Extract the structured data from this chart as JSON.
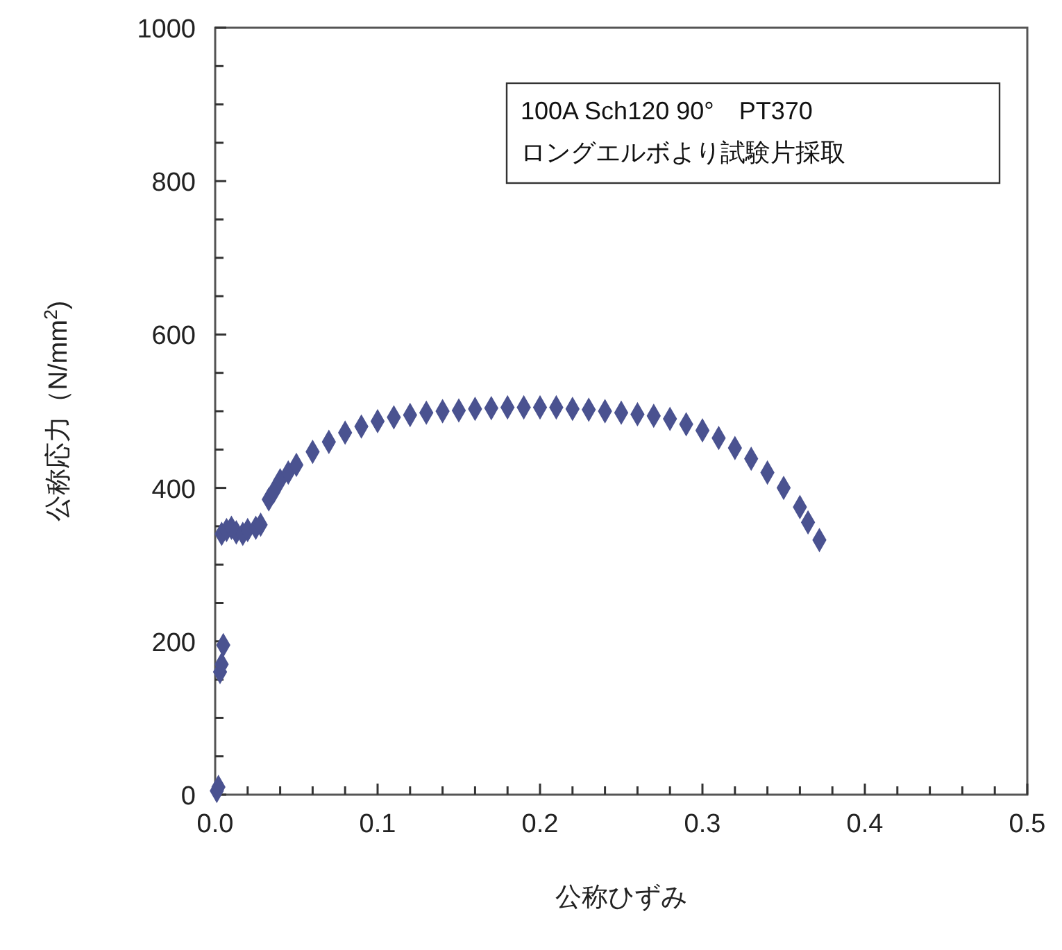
{
  "chart_data": {
    "type": "scatter",
    "xlabel": "公称ひずみ",
    "ylabel": "公称応力（N/mm$^{2}$)",
    "annotations": [
      "100A Sch120 90°　PT370",
      "ロングエルボより試験片採取"
    ],
    "marker": "diamond",
    "grid": false,
    "xlim": [
      0,
      0.5
    ],
    "ylim": [
      0,
      1000
    ],
    "xticks": [
      {
        "value": 0,
        "label": "0.0"
      },
      {
        "value": 0.02,
        "label": null
      },
      {
        "value": 0.04,
        "label": null
      },
      {
        "value": 0.06,
        "label": null
      },
      {
        "value": 0.08,
        "label": null
      },
      {
        "value": 0.1,
        "label": "0.1"
      },
      {
        "value": 0.12,
        "label": null
      },
      {
        "value": 0.14,
        "label": null
      },
      {
        "value": 0.16,
        "label": null
      },
      {
        "value": 0.18,
        "label": null
      },
      {
        "value": 0.2,
        "label": "0.2"
      },
      {
        "value": 0.22,
        "label": null
      },
      {
        "value": 0.24,
        "label": null
      },
      {
        "value": 0.26,
        "label": null
      },
      {
        "value": 0.28,
        "label": null
      },
      {
        "value": 0.3,
        "label": "0.3"
      },
      {
        "value": 0.32,
        "label": null
      },
      {
        "value": 0.34,
        "label": null
      },
      {
        "value": 0.36,
        "label": null
      },
      {
        "value": 0.38,
        "label": null
      },
      {
        "value": 0.4,
        "label": "0.4"
      },
      {
        "value": 0.42,
        "label": null
      },
      {
        "value": 0.44,
        "label": null
      },
      {
        "value": 0.46,
        "label": null
      },
      {
        "value": 0.48,
        "label": null
      },
      {
        "value": 0.5,
        "label": "0.5"
      }
    ],
    "yticks": [
      0,
      {
        "value": 50,
        "label": null
      },
      {
        "value": 100,
        "label": null
      },
      {
        "value": 150,
        "label": null
      },
      200,
      {
        "value": 250,
        "label": null
      },
      {
        "value": 300,
        "label": null
      },
      {
        "value": 350,
        "label": null
      },
      400,
      {
        "value": 450,
        "label": null
      },
      {
        "value": 500,
        "label": null
      },
      {
        "value": 550,
        "label": null
      },
      600,
      {
        "value": 650,
        "label": null
      },
      {
        "value": 700,
        "label": null
      },
      {
        "value": 750,
        "label": null
      },
      800,
      {
        "value": 850,
        "label": null
      },
      {
        "value": 900,
        "label": null
      },
      {
        "value": 950,
        "label": null
      },
      1000
    ],
    "series": [
      {
        "color": "#4a5290",
        "x": [
          0.001,
          0.002,
          0.003,
          0.004,
          0.005,
          0.004,
          0.007,
          0.01,
          0.013,
          0.017,
          0.02,
          0.025,
          0.028,
          0.033,
          0.036,
          0.04,
          0.045,
          0.05,
          0.06,
          0.07,
          0.08,
          0.09,
          0.1,
          0.11,
          0.12,
          0.13,
          0.14,
          0.15,
          0.16,
          0.17,
          0.18,
          0.19,
          0.2,
          0.21,
          0.22,
          0.23,
          0.24,
          0.25,
          0.26,
          0.27,
          0.28,
          0.29,
          0.3,
          0.31,
          0.32,
          0.33,
          0.34,
          0.35,
          0.36,
          0.365,
          0.372
        ],
        "values": [
          5,
          10,
          160,
          170,
          195,
          340,
          345,
          348,
          342,
          340,
          345,
          348,
          352,
          385,
          395,
          410,
          420,
          430,
          447,
          460,
          472,
          480,
          487,
          492,
          495,
          498,
          500,
          501,
          503,
          504,
          505,
          505,
          505,
          505,
          503,
          502,
          500,
          498,
          496,
          494,
          490,
          483,
          475,
          465,
          452,
          438,
          420,
          400,
          375,
          355,
          332
        ]
      }
    ]
  }
}
